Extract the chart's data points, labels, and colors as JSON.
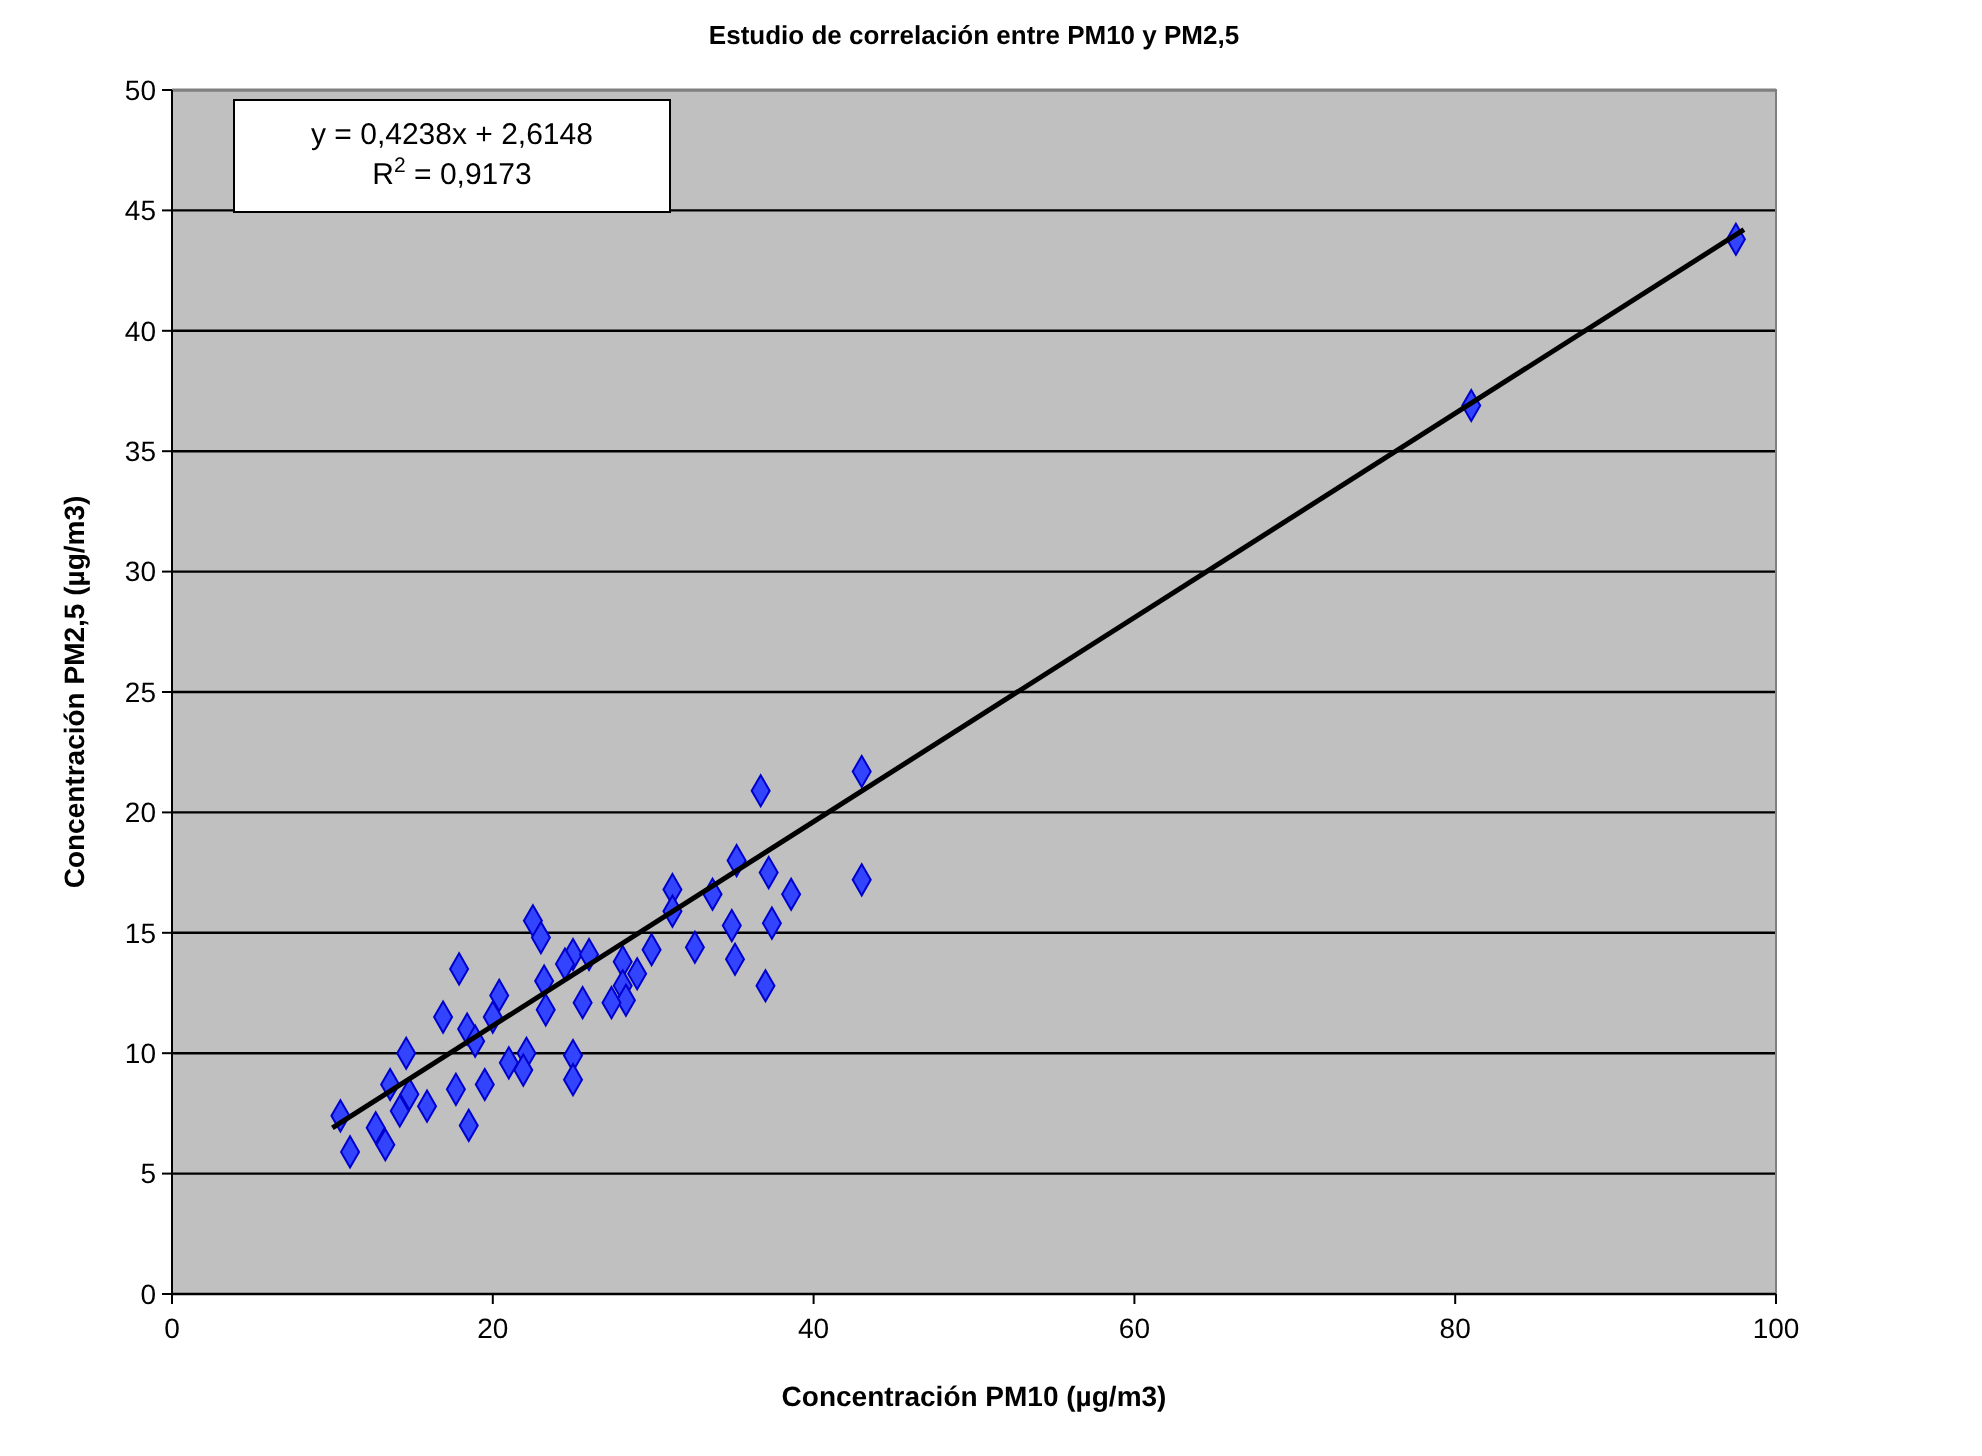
{
  "chart_data": {
    "type": "scatter",
    "title": "Estudio de correlación entre PM10 y PM2,5",
    "xlabel": "Concentración PM10 (µg/m3)",
    "ylabel": "Concentración PM2,5 (µg/m3)",
    "xlim": [
      0,
      100
    ],
    "xticks": [
      0,
      20,
      40,
      60,
      80,
      100
    ],
    "ylim": [
      0,
      50
    ],
    "yticks": [
      0,
      5,
      10,
      15,
      20,
      25,
      30,
      35,
      40,
      45,
      50
    ],
    "grid": "y",
    "marker": "diamond",
    "annotations": [
      "y = 0,4238x + 2,6148",
      "R$^{2}$ = 0,9173"
    ],
    "series": [
      {
        "color": "#3344ff",
        "x": [
          97.5,
          81,
          43,
          36.7,
          43,
          35.2,
          37.2,
          38.6,
          31.2,
          33.7,
          31.2,
          34.9,
          37.4,
          32.6,
          35.1,
          37,
          29.9,
          28.1,
          29,
          28.1,
          28.3,
          22.5,
          23,
          17.9,
          25,
          26,
          24.5,
          23.2,
          20.4,
          20,
          16.9,
          18.4,
          18.9,
          23.3,
          25.6,
          27.4,
          14.6,
          22.1,
          21,
          21.9,
          25,
          25,
          13.6,
          14.8,
          17.7,
          19.5,
          15.9,
          14.2,
          10.5,
          18.5,
          12.7,
          13.3,
          11.1
        ],
        "values": [
          43.8,
          36.9,
          21.7,
          20.9,
          17.2,
          18,
          17.5,
          16.6,
          16.8,
          16.6,
          15.9,
          15.3,
          15.4,
          14.4,
          13.9,
          12.8,
          14.3,
          13.8,
          13.3,
          12.8,
          12.2,
          15.5,
          14.8,
          13.5,
          14.1,
          14.1,
          13.7,
          13,
          12.4,
          11.5,
          11.5,
          11,
          10.5,
          11.8,
          12.1,
          12.1,
          10,
          10,
          9.6,
          9.3,
          9.9,
          8.9,
          8.7,
          8.3,
          8.5,
          8.7,
          7.8,
          7.6,
          7.4,
          7,
          6.9,
          6.2,
          5.9
        ]
      },
      {
        "type": "line",
        "color": "#000000",
        "x": [
          10,
          98
        ],
        "values": [
          6.9,
          44.2
        ],
        "line_style": "solid",
        "marker": "none"
      }
    ]
  }
}
